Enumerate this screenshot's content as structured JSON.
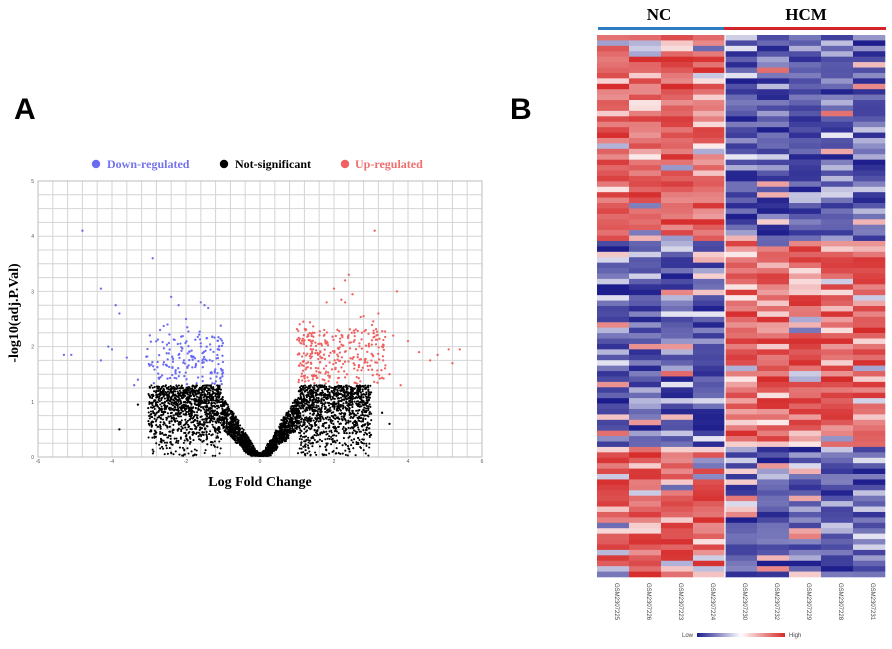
{
  "panels": {
    "a_label": "A",
    "b_label": "B"
  },
  "chart_data": [
    {
      "type": "scatter",
      "title": "",
      "xlabel": "Log Fold Change",
      "ylabel": "-log10(adj.P.Val)",
      "xlim": [
        -6,
        6
      ],
      "ylim": [
        0,
        5
      ],
      "xticks": [
        -6,
        -4,
        -2,
        0,
        2,
        4,
        6
      ],
      "yticks": [
        0,
        1,
        2,
        3,
        4,
        5
      ],
      "grid": true,
      "legend_position": "top",
      "series": [
        {
          "name": "Down-regulated",
          "color": "#6b6bf2",
          "note": "cloud of about 170 points spanning logFC -3 to -1 and -log10 p 1.3 to 2.2 (dense region rendered procedurally)",
          "points": [
            [
              -4.8,
              4.1
            ],
            [
              -2.9,
              3.6
            ],
            [
              -4.3,
              3.05
            ],
            [
              -3.9,
              2.75
            ],
            [
              -3.8,
              2.6
            ],
            [
              -2.4,
              2.9
            ],
            [
              -2.2,
              2.75
            ],
            [
              -1.6,
              2.8
            ],
            [
              -1.5,
              2.75
            ],
            [
              -1.4,
              2.7
            ],
            [
              -5.3,
              1.85
            ],
            [
              -5.1,
              1.85
            ],
            [
              -4.1,
              2.0
            ],
            [
              -4.0,
              1.95
            ],
            [
              -3.6,
              1.8
            ],
            [
              -4.3,
              1.75
            ],
            [
              -3.3,
              1.4
            ],
            [
              -3.4,
              1.3
            ],
            [
              -2.5,
              2.4
            ],
            [
              -2.7,
              2.3
            ],
            [
              -2.0,
              2.5
            ]
          ]
        },
        {
          "name": "Not-significant",
          "color": "#000000",
          "note": "V-shaped cloud of several thousand points around logFC 0, -log10 p below 1.3 (rendered procedurally)",
          "points": [
            [
              -3.8,
              0.5
            ],
            [
              -3.3,
              0.95
            ],
            [
              -3.0,
              0.6
            ],
            [
              3.0,
              0.4
            ],
            [
              3.3,
              0.8
            ],
            [
              3.5,
              0.6
            ]
          ]
        },
        {
          "name": "Up-regulated",
          "color": "#f06262",
          "note": "cloud of about 300 points spanning logFC 1 to 3 and -log10 p 1.3 to 2.4 (dense region rendered procedurally)",
          "points": [
            [
              3.1,
              4.1
            ],
            [
              2.4,
              3.3
            ],
            [
              2.3,
              3.2
            ],
            [
              2.0,
              3.05
            ],
            [
              2.5,
              2.95
            ],
            [
              2.2,
              2.85
            ],
            [
              1.8,
              2.8
            ],
            [
              2.3,
              2.8
            ],
            [
              3.7,
              3.0
            ],
            [
              3.2,
              2.6
            ],
            [
              4.0,
              2.1
            ],
            [
              4.3,
              1.9
            ],
            [
              4.6,
              1.75
            ],
            [
              4.8,
              1.85
            ],
            [
              5.1,
              1.95
            ],
            [
              5.2,
              1.7
            ],
            [
              5.4,
              1.95
            ],
            [
              3.5,
              1.5
            ],
            [
              3.8,
              1.3
            ],
            [
              3.6,
              2.2
            ],
            [
              3.3,
              2.0
            ],
            [
              2.8,
              2.55
            ]
          ]
        }
      ]
    },
    {
      "type": "heatmap",
      "groups": [
        {
          "name": "NC",
          "color": "#2e7dc4",
          "samples": 4
        },
        {
          "name": "HCM",
          "color": "#d3232b",
          "samples": 5
        }
      ],
      "columns": [
        "GSM2307225",
        "GSM2307226",
        "GSM2307223",
        "GSM2307224",
        "GSM2307230",
        "GSM2307232",
        "GSM2307229",
        "GSM2307228",
        "GSM2307231"
      ],
      "rows": 100,
      "clusters": [
        {
          "name": "cluster-1",
          "rows": 38,
          "nc_tone": "high",
          "hcm_tone": "low"
        },
        {
          "name": "cluster-2",
          "rows": 38,
          "nc_tone": "low",
          "hcm_tone": "high"
        },
        {
          "name": "cluster-3",
          "rows": 24,
          "nc_tone": "high",
          "hcm_tone": "low"
        }
      ],
      "color_scale": {
        "low_label": "Low",
        "high_label": "High",
        "low_color": "#1c1c8c",
        "mid_color": "#ffffff",
        "high_color": "#d62a2a"
      }
    }
  ]
}
